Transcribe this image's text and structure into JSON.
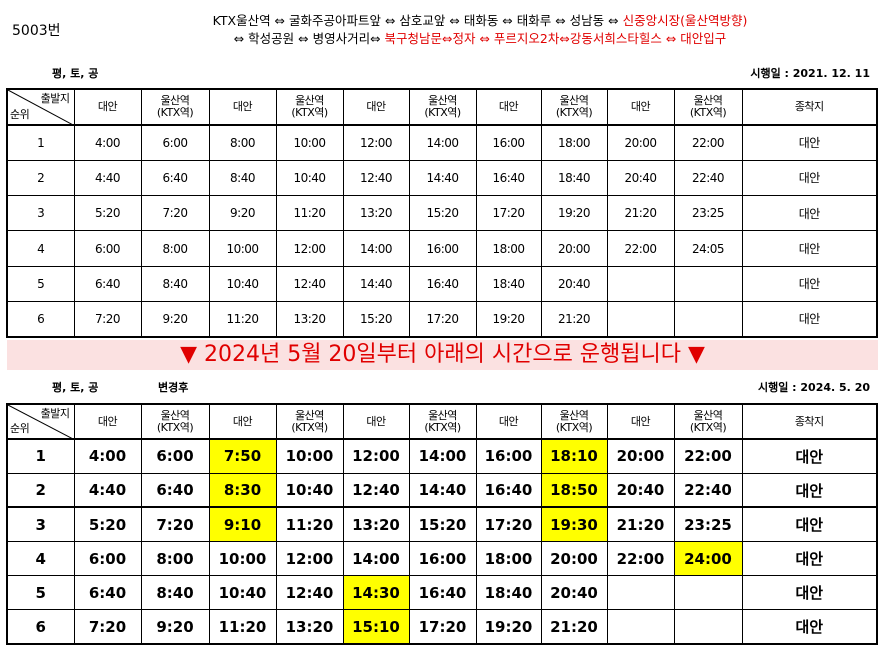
{
  "route": "5003번",
  "route_lines": [
    [
      {
        "text": "KTX울산역 ⇔ 굴화주공아파트앞 ⇔ 삼호교앞 ⇔ 태화동 ⇔ 태화루 ⇔ 성남동 ⇔ ",
        "color": "#000000"
      },
      {
        "text": "신중앙시장(울산역방향)",
        "color": "#e00000"
      }
    ],
    [
      {
        "text": "⇔ 학성공원 ⇔ 병영사거리⇔ ",
        "color": "#000000"
      },
      {
        "text": "북구청남문⇔정자 ⇔ 푸르지오2차⇔강동서희스타힐스 ⇔ 대안입구",
        "color": "#e00000"
      }
    ]
  ],
  "banner": "▼ 2024년 5월 20일부터 아래의 시간으로 운행됩니다 ▼",
  "schedules": [
    {
      "day": "평, 토, 공",
      "effective": "시행일 : 2021. 12. 11",
      "header": {
        "corner": [
          "출발지",
          "순위"
        ],
        "columns": [
          [
            "대안"
          ],
          [
            "울산역",
            "(KTX역)"
          ],
          [
            "대안"
          ],
          [
            "울산역",
            "(KTX역)"
          ],
          [
            "대안"
          ],
          [
            "울산역",
            "(KTX역)"
          ],
          [
            "대안"
          ],
          [
            "울산역",
            "(KTX역)"
          ],
          [
            "대안"
          ],
          [
            "울산역",
            "(KTX역)"
          ],
          [
            "종착지"
          ]
        ]
      },
      "rows": [
        {
          "no": 1,
          "times": [
            "4:00",
            "6:00",
            "8:00",
            "10:00",
            "12:00",
            "14:00",
            "16:00",
            "18:00",
            "20:00",
            "22:00"
          ],
          "terminal": "대안"
        },
        {
          "no": 2,
          "times": [
            "4:40",
            "6:40",
            "8:40",
            "10:40",
            "12:40",
            "14:40",
            "16:40",
            "18:40",
            "20:40",
            "22:40"
          ],
          "terminal": "대안"
        },
        {
          "no": 3,
          "times": [
            "5:20",
            "7:20",
            "9:20",
            "11:20",
            "13:20",
            "15:20",
            "17:20",
            "19:20",
            "21:20",
            "23:25"
          ],
          "terminal": "대안"
        },
        {
          "no": 4,
          "times": [
            "6:00",
            "8:00",
            "10:00",
            "12:00",
            "14:00",
            "16:00",
            "18:00",
            "20:00",
            "22:00",
            "24:05"
          ],
          "terminal": "대안"
        },
        {
          "no": 5,
          "times": [
            "6:40",
            "8:40",
            "10:40",
            "12:40",
            "14:40",
            "16:40",
            "18:40",
            "20:40"
          ],
          "terminal": "대안"
        },
        {
          "no": 6,
          "times": [
            "7:20",
            "9:20",
            "11:20",
            "13:20",
            "15:20",
            "17:20",
            "19:20",
            "21:20"
          ],
          "terminal": "대안"
        }
      ]
    },
    {
      "day": "평, 토, 공",
      "note": "변경후",
      "effective": "시행일 : 2024. 5. 20",
      "header": {
        "corner": [
          "출발지",
          "순위"
        ],
        "columns": [
          [
            "대안"
          ],
          [
            "울산역",
            "(KTX역)"
          ],
          [
            "대안"
          ],
          [
            "울산역",
            "(KTX역)"
          ],
          [
            "대안"
          ],
          [
            "울산역",
            "(KTX역)"
          ],
          [
            "대안"
          ],
          [
            "울산역",
            "(KTX역)"
          ],
          [
            "대안"
          ],
          [
            "울산역",
            "(KTX역)"
          ],
          [
            "종착지"
          ]
        ]
      },
      "rows": [
        {
          "no": 1,
          "times": [
            "4:00",
            "6:00",
            {
              "text": "7:50",
              "fill": "#ffff00"
            },
            "10:00",
            "12:00",
            "14:00",
            "16:00",
            {
              "text": "18:10",
              "fill": "#ffff00"
            },
            "20:00",
            "22:00"
          ],
          "terminal": "대안"
        },
        {
          "no": 2,
          "times": [
            "4:40",
            "6:40",
            {
              "text": "8:30",
              "fill": "#ffff00"
            },
            "10:40",
            "12:40",
            "14:40",
            "16:40",
            {
              "text": "18:50",
              "fill": "#ffff00"
            },
            "20:40",
            "22:40"
          ],
          "terminal": "대안"
        },
        {
          "no": 3,
          "times": [
            "5:20",
            "7:20",
            {
              "text": "9:10",
              "fill": "#ffff00"
            },
            "11:20",
            "13:20",
            "15:20",
            "17:20",
            {
              "text": "19:30",
              "fill": "#ffff00"
            },
            "21:20",
            "23:25"
          ],
          "terminal": "대안"
        },
        {
          "no": 4,
          "times": [
            "6:00",
            "8:00",
            "10:00",
            "12:00",
            "14:00",
            "16:00",
            "18:00",
            "20:00",
            "22:00",
            {
              "text": "24:00",
              "fill": "#ffff00"
            }
          ],
          "terminal": "대안"
        },
        {
          "no": 5,
          "times": [
            "6:40",
            "8:40",
            "10:40",
            "12:40",
            {
              "text": "14:30",
              "fill": "#ffff00"
            },
            "16:40",
            "18:40",
            "20:40"
          ],
          "terminal": "대안"
        },
        {
          "no": 6,
          "times": [
            "7:20",
            "9:20",
            "11:20",
            "13:20",
            {
              "text": "15:10",
              "fill": "#ffff00"
            },
            "17:20",
            "19:20",
            "21:20"
          ],
          "terminal": "대안"
        }
      ]
    }
  ]
}
